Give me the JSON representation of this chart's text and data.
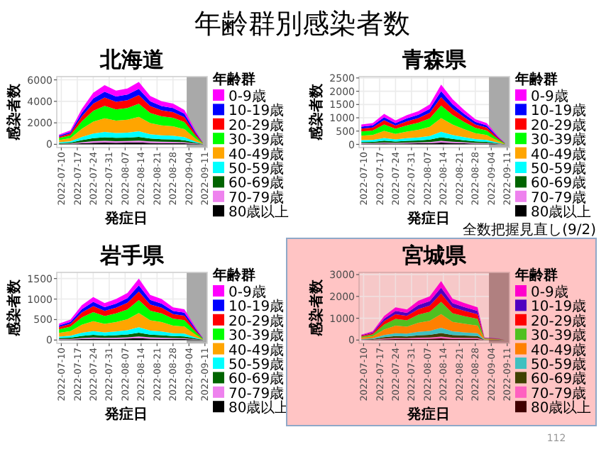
{
  "chart_data": [
    {
      "type": "area",
      "stacked": true,
      "title": "北海道",
      "xlabel": "発症日",
      "ylabel": "感染者数",
      "legend_title": "年齢群",
      "legend": "right",
      "grid": true,
      "annotations": [
        "年齢群別感染者数"
      ],
      "x": [
        "2022-07-09",
        "2022-07-14",
        "2022-07-19",
        "2022-07-24",
        "2022-07-29",
        "2022-08-03",
        "2022-08-08",
        "2022-08-13",
        "2022-08-18",
        "2022-08-23",
        "2022-08-28",
        "2022-09-02",
        "2022-09-07",
        "2022-09-10"
      ],
      "xlim": [
        "2022-07-08",
        "2022-09-12"
      ],
      "xticks": [
        "2022-07-10",
        "2022-07-17",
        "2022-07-24",
        "2022-07-31",
        "2022-08-07",
        "2022-08-14",
        "2022-08-21",
        "2022-08-28",
        "2022-09-04",
        "2022-09-11"
      ],
      "ylim": [
        -300,
        6300
      ],
      "yticks": [
        0,
        2000,
        4000,
        6000
      ],
      "bands": [
        {
          "axis": "x",
          "from": "2022-09-03",
          "to": "2022-09-12",
          "color": "#a9a9a9"
        }
      ],
      "series": [
        {
          "name": "80歳以上",
          "color": "#000000",
          "values": [
            27,
            39,
            99,
            144,
            165,
            150,
            156,
            174,
            135,
            120,
            114,
            96,
            36,
            6
          ]
        },
        {
          "name": "70-79歳",
          "color": "#ee82ee",
          "values": [
            27,
            39,
            99,
            144,
            165,
            150,
            156,
            174,
            135,
            120,
            114,
            96,
            36,
            6
          ]
        },
        {
          "name": "60-69歳",
          "color": "#006400",
          "values": [
            54,
            78,
            198,
            288,
            330,
            300,
            312,
            348,
            270,
            240,
            228,
            192,
            72,
            12
          ]
        },
        {
          "name": "50-59歳",
          "color": "#00ffff",
          "values": [
            81,
            117,
            297,
            432,
            495,
            450,
            468,
            522,
            405,
            360,
            342,
            288,
            108,
            18
          ]
        },
        {
          "name": "40-49歳",
          "color": "#ffa500",
          "values": [
            207,
            299,
            759,
            1104,
            1265,
            1150,
            1196,
            1334,
            1035,
            920,
            874,
            736,
            276,
            46
          ]
        },
        {
          "name": "30-39歳",
          "color": "#00ff00",
          "values": [
            189,
            273,
            693,
            1008,
            1155,
            1050,
            1092,
            1218,
            945,
            840,
            798,
            672,
            252,
            42
          ]
        },
        {
          "name": "20-29歳",
          "color": "#ff0000",
          "values": [
            126,
            182,
            462,
            672,
            770,
            700,
            728,
            812,
            630,
            560,
            532,
            448,
            168,
            28
          ]
        },
        {
          "name": "10-19歳",
          "color": "#0000ff",
          "values": [
            90,
            130,
            330,
            480,
            550,
            500,
            520,
            580,
            450,
            400,
            380,
            320,
            120,
            20
          ]
        },
        {
          "name": "0-9歳",
          "color": "#ff00ff",
          "values": [
            99,
            143,
            363,
            528,
            605,
            550,
            572,
            638,
            495,
            440,
            418,
            352,
            132,
            22
          ]
        }
      ]
    },
    {
      "type": "area",
      "stacked": true,
      "title": "青森県",
      "xlabel": "発症日",
      "ylabel": "感染者数",
      "legend_title": "年齢群",
      "legend": "right",
      "grid": true,
      "x": [
        "2022-07-09",
        "2022-07-14",
        "2022-07-19",
        "2022-07-24",
        "2022-07-29",
        "2022-08-03",
        "2022-08-08",
        "2022-08-13",
        "2022-08-18",
        "2022-08-23",
        "2022-08-28",
        "2022-09-02",
        "2022-09-07",
        "2022-09-10"
      ],
      "xlim": [
        "2022-07-08",
        "2022-09-12"
      ],
      "xticks": [
        "2022-07-10",
        "2022-07-17",
        "2022-07-24",
        "2022-07-31",
        "2022-08-07",
        "2022-08-14",
        "2022-08-21",
        "2022-08-28",
        "2022-09-04",
        "2022-09-11"
      ],
      "ylim": [
        -120,
        2550
      ],
      "yticks": [
        0,
        500,
        1000,
        1500,
        2000,
        2500
      ],
      "bands": [
        {
          "axis": "x",
          "from": "2022-09-03",
          "to": "2022-09-12",
          "color": "#a9a9a9"
        }
      ],
      "series": [
        {
          "name": "80歳以上",
          "color": "#000000",
          "values": [
            23,
            24,
            35,
            27,
            33,
            38,
            45,
            67,
            51,
            39,
            29,
            24,
            9,
            2
          ]
        },
        {
          "name": "70-79歳",
          "color": "#ee82ee",
          "values": [
            22,
            24,
            34,
            27,
            33,
            37,
            45,
            68,
            51,
            39,
            28,
            24,
            9,
            1
          ]
        },
        {
          "name": "60-69歳",
          "color": "#006400",
          "values": [
            45,
            48,
            69,
            54,
            66,
            75,
            90,
            135,
            102,
            78,
            57,
            48,
            18,
            3
          ]
        },
        {
          "name": "50-59歳",
          "color": "#00ffff",
          "values": [
            68,
            72,
            104,
            81,
            99,
            112,
            135,
            202,
            153,
            117,
            86,
            72,
            27,
            4
          ]
        },
        {
          "name": "40-49歳",
          "color": "#ffa500",
          "values": [
            172,
            184,
            264,
            207,
            253,
            288,
            345,
            518,
            391,
            299,
            218,
            184,
            69,
            12
          ]
        },
        {
          "name": "30-39歳",
          "color": "#00ff00",
          "values": [
            158,
            168,
            242,
            189,
            231,
            262,
            315,
            472,
            357,
            273,
            200,
            168,
            63,
            11
          ]
        },
        {
          "name": "20-29歳",
          "color": "#ff0000",
          "values": [
            105,
            112,
            161,
            126,
            154,
            175,
            210,
            315,
            238,
            182,
            133,
            112,
            42,
            7
          ]
        },
        {
          "name": "10-19歳",
          "color": "#0000ff",
          "values": [
            75,
            80,
            115,
            90,
            110,
            125,
            150,
            225,
            170,
            130,
            95,
            80,
            30,
            5
          ]
        },
        {
          "name": "0-9歳",
          "color": "#ff00ff",
          "values": [
            82,
            88,
            126,
            99,
            121,
            138,
            165,
            248,
            187,
            143,
            104,
            88,
            33,
            5
          ]
        }
      ]
    },
    {
      "type": "area",
      "stacked": true,
      "title": "岩手県",
      "xlabel": "発症日",
      "ylabel": "感染者数",
      "legend_title": "年齢群",
      "legend": "right",
      "grid": true,
      "x": [
        "2022-07-09",
        "2022-07-14",
        "2022-07-19",
        "2022-07-24",
        "2022-07-29",
        "2022-08-03",
        "2022-08-08",
        "2022-08-13",
        "2022-08-18",
        "2022-08-23",
        "2022-08-28",
        "2022-09-02",
        "2022-09-07",
        "2022-09-10"
      ],
      "xlim": [
        "2022-07-08",
        "2022-09-12"
      ],
      "xticks": [
        "2022-07-10",
        "2022-07-17",
        "2022-07-24",
        "2022-07-31",
        "2022-08-07",
        "2022-08-14",
        "2022-08-21",
        "2022-08-28",
        "2022-09-04",
        "2022-09-11"
      ],
      "ylim": [
        -80,
        1650
      ],
      "yticks": [
        0,
        500,
        1000,
        1500
      ],
      "bands": [
        {
          "axis": "x",
          "from": "2022-09-03",
          "to": "2022-09-12",
          "color": "#a9a9a9"
        }
      ],
      "series": [
        {
          "name": "80歳以上",
          "color": "#000000",
          "values": [
            12,
            15,
            26,
            32,
            27,
            30,
            35,
            45,
            33,
            30,
            24,
            23,
            9,
            2
          ]
        },
        {
          "name": "70-79歳",
          "color": "#ee82ee",
          "values": [
            12,
            15,
            25,
            31,
            27,
            30,
            34,
            45,
            33,
            30,
            24,
            22,
            9,
            1
          ]
        },
        {
          "name": "60-69歳",
          "color": "#006400",
          "values": [
            24,
            30,
            51,
            63,
            54,
            60,
            69,
            90,
            66,
            60,
            48,
            45,
            18,
            4
          ]
        },
        {
          "name": "50-59歳",
          "color": "#00ffff",
          "values": [
            36,
            45,
            76,
            94,
            81,
            90,
            104,
            135,
            99,
            90,
            72,
            68,
            27,
            5
          ]
        },
        {
          "name": "40-49歳",
          "color": "#ffa500",
          "values": [
            92,
            115,
            196,
            242,
            207,
            230,
            264,
            345,
            253,
            230,
            184,
            172,
            69,
            14
          ]
        },
        {
          "name": "30-39歳",
          "color": "#00ff00",
          "values": [
            84,
            105,
            178,
            220,
            189,
            210,
            242,
            315,
            231,
            210,
            168,
            158,
            63,
            13
          ]
        },
        {
          "name": "20-29歳",
          "color": "#ff0000",
          "values": [
            56,
            70,
            119,
            147,
            126,
            140,
            161,
            210,
            154,
            140,
            112,
            105,
            42,
            8
          ]
        },
        {
          "name": "10-19歳",
          "color": "#0000ff",
          "values": [
            40,
            50,
            85,
            105,
            90,
            100,
            115,
            150,
            110,
            100,
            80,
            75,
            30,
            6
          ]
        },
        {
          "name": "0-9歳",
          "color": "#ff00ff",
          "values": [
            44,
            55,
            94,
            116,
            99,
            110,
            126,
            165,
            121,
            110,
            88,
            82,
            33,
            7
          ]
        }
      ]
    },
    {
      "type": "area",
      "stacked": true,
      "title": "宮城県",
      "xlabel": "発症日",
      "ylabel": "感染者数",
      "legend_title": "年齢群",
      "legend": "right",
      "grid": true,
      "annotations": [
        "全数把握見直し(9/2)",
        "112"
      ],
      "x": [
        "2022-07-09",
        "2022-07-14",
        "2022-07-19",
        "2022-07-24",
        "2022-07-29",
        "2022-08-03",
        "2022-08-08",
        "2022-08-13",
        "2022-08-18",
        "2022-08-23",
        "2022-08-29",
        "2022-09-01",
        "2022-09-07",
        "2022-09-10"
      ],
      "xlim": [
        "2022-07-08",
        "2022-09-12"
      ],
      "xticks": [
        "2022-07-10",
        "2022-07-17",
        "2022-07-24",
        "2022-07-31",
        "2022-08-07",
        "2022-08-14",
        "2022-08-21",
        "2022-08-28",
        "2022-09-04",
        "2022-09-11"
      ],
      "ylim": [
        -150,
        3100
      ],
      "yticks": [
        0,
        1000,
        2000,
        3000
      ],
      "bands": [
        {
          "axis": "x",
          "from": "2022-09-03",
          "to": "2022-09-12",
          "color": "#b08080"
        }
      ],
      "series": [
        {
          "name": "80歳以上",
          "color": "#400000",
          "values": [
            8,
            12,
            33,
            45,
            42,
            54,
            60,
            81,
            57,
            51,
            45,
            4,
            3,
            0
          ]
        },
        {
          "name": "70-79歳",
          "color": "#ff60c0",
          "values": [
            7,
            12,
            33,
            45,
            42,
            54,
            60,
            81,
            57,
            51,
            45,
            3,
            2,
            0
          ]
        },
        {
          "name": "60-69歳",
          "color": "#404000",
          "values": [
            15,
            24,
            66,
            90,
            84,
            108,
            120,
            162,
            114,
            102,
            90,
            7,
            5,
            0
          ]
        },
        {
          "name": "50-59歳",
          "color": "#40c0c0",
          "values": [
            22,
            36,
            99,
            135,
            126,
            162,
            180,
            243,
            171,
            153,
            135,
            11,
            7,
            0
          ]
        },
        {
          "name": "40-49歳",
          "color": "#ff8000",
          "values": [
            58,
            92,
            253,
            345,
            322,
            414,
            460,
            621,
            437,
            391,
            345,
            28,
            18,
            0
          ]
        },
        {
          "name": "30-39歳",
          "color": "#50c020",
          "values": [
            52,
            84,
            231,
            315,
            294,
            378,
            420,
            567,
            399,
            357,
            315,
            25,
            17,
            0
          ]
        },
        {
          "name": "20-29歳",
          "color": "#ff0000",
          "values": [
            35,
            56,
            154,
            210,
            196,
            252,
            280,
            378,
            266,
            238,
            210,
            17,
            11,
            0
          ]
        },
        {
          "name": "10-19歳",
          "color": "#5000c0",
          "values": [
            25,
            40,
            110,
            150,
            140,
            180,
            200,
            270,
            190,
            170,
            150,
            12,
            8,
            0
          ]
        },
        {
          "name": "0-9歳",
          "color": "#ff00cc",
          "values": [
            28,
            44,
            121,
            165,
            154,
            198,
            220,
            297,
            209,
            187,
            165,
            13,
            9,
            0
          ]
        }
      ]
    }
  ]
}
